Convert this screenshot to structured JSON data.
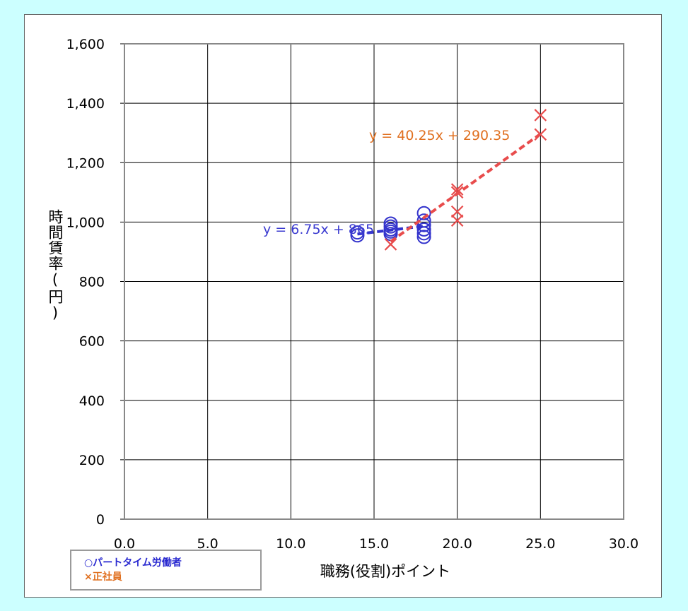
{
  "chart_data": {
    "type": "scatter",
    "xlabel": "職務(役割)ポイント",
    "ylabel": "時間賃率(円)",
    "xlim": [
      0,
      30
    ],
    "ylim": [
      0,
      1600
    ],
    "x_ticks": [
      "0.0",
      "5.0",
      "10.0",
      "15.0",
      "20.0",
      "25.0",
      "30.0"
    ],
    "y_ticks": [
      "0",
      "200",
      "400",
      "600",
      "800",
      "1,000",
      "1,200",
      "1,400",
      "1,600"
    ],
    "x_tick_values": [
      0,
      5,
      10,
      15,
      20,
      25,
      30
    ],
    "y_tick_values": [
      0,
      200,
      400,
      600,
      800,
      1000,
      1200,
      1400,
      1600
    ],
    "grid": true,
    "legend_position": "bottom-left",
    "series": [
      {
        "name": "パートタイム労働者",
        "legend_label": "○パートタイム労働者",
        "marker": "circle",
        "color": "#3333cc",
        "points": [
          [
            14,
            965
          ],
          [
            14,
            955
          ],
          [
            16,
            995
          ],
          [
            16,
            985
          ],
          [
            16,
            975
          ],
          [
            16,
            968
          ],
          [
            16,
            960
          ],
          [
            18,
            1030
          ],
          [
            18,
            1005
          ],
          [
            18,
            990
          ],
          [
            18,
            975
          ],
          [
            18,
            962
          ],
          [
            18,
            950
          ]
        ],
        "trendline": {
          "slope": 6.75,
          "intercept": 865,
          "x_range": [
            14,
            18
          ],
          "label": "y = 6.75x + 865"
        }
      },
      {
        "name": "正社員",
        "legend_label": "×正社員",
        "marker": "x",
        "color": "#e84c4c",
        "points": [
          [
            16,
            925
          ],
          [
            20,
            1110
          ],
          [
            20,
            1100
          ],
          [
            20,
            1035
          ],
          [
            20,
            1005
          ],
          [
            25,
            1360
          ],
          [
            25,
            1295
          ]
        ],
        "trendline": {
          "slope": 40.25,
          "intercept": 290.35,
          "x_range": [
            16,
            25
          ],
          "label": "y = 40.25x + 290.35"
        }
      }
    ],
    "trend_label_colors": [
      "#3b3bd0",
      "#e07020"
    ]
  }
}
